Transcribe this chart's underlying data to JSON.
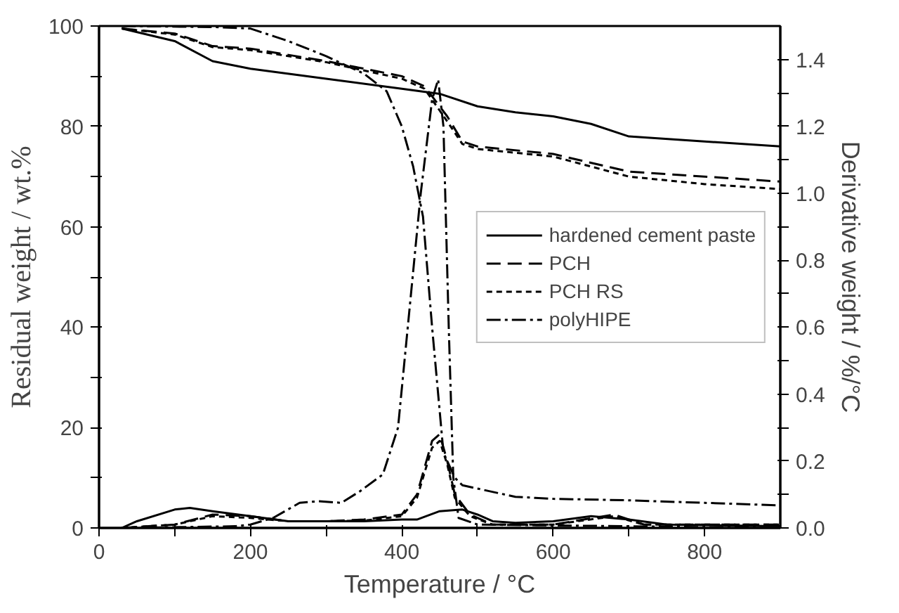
{
  "chart_data": {
    "type": "line",
    "xlabel": "Temperature / °C",
    "ylabel": "Residual weight / wt.%",
    "y2label": "Derivative weight / %/°C",
    "xlim": [
      0,
      900
    ],
    "xticks": [
      0,
      {
        "value": 100,
        "label": null
      },
      200,
      {
        "value": 300,
        "label": null
      },
      400,
      {
        "value": 500,
        "label": null
      },
      600,
      {
        "value": 700,
        "label": null
      },
      800
    ],
    "ylim": [
      0,
      100
    ],
    "yticks": [
      0,
      {
        "value": 10,
        "label": null
      },
      20,
      {
        "value": 30,
        "label": null
      },
      40,
      {
        "value": 50,
        "label": null
      },
      60,
      {
        "value": 70,
        "label": null
      },
      80,
      {
        "value": 90,
        "label": null
      },
      100
    ],
    "y2lim": [
      0,
      1.5
    ],
    "y2ticks": [
      {
        "value": 0,
        "label": "0.0"
      },
      {
        "value": 0.1,
        "label": null
      },
      0.2,
      {
        "value": 0.3,
        "label": null
      },
      0.4,
      {
        "value": 0.5,
        "label": null
      },
      0.6,
      {
        "value": 0.7,
        "label": null
      },
      0.8,
      {
        "value": 0.9,
        "label": null
      },
      {
        "value": 1.0,
        "label": "1.0"
      },
      {
        "value": 1.1,
        "label": null
      },
      1.2,
      {
        "value": 1.3,
        "label": null
      },
      1.4
    ],
    "grid": false,
    "legend": "right",
    "marker": "none",
    "series": [
      {
        "name": "hardened cement paste",
        "color": "#000000",
        "line_style": "solid",
        "x": [
          30,
          100,
          150,
          200,
          300,
          400,
          450,
          500,
          550,
          600,
          650,
          700,
          800,
          900
        ],
        "values": [
          99.5,
          97,
          93,
          91.5,
          89.5,
          87.5,
          86.5,
          84,
          82.8,
          82,
          80.5,
          78,
          77,
          76
        ]
      },
      {
        "name": "PCH",
        "color": "#000000",
        "line_style": "dashed",
        "x": [
          30,
          100,
          150,
          200,
          300,
          400,
          430,
          460,
          480,
          500,
          600,
          700,
          800,
          900
        ],
        "values": [
          99.5,
          98.5,
          96,
          95.5,
          93,
          90,
          88,
          82,
          77,
          76,
          74.5,
          71,
          70,
          69
        ]
      },
      {
        "name": "PCH RS",
        "color": "#000000",
        "line_style": "dotted",
        "x": [
          30,
          100,
          150,
          200,
          300,
          400,
          430,
          460,
          480,
          500,
          600,
          700,
          800,
          900
        ],
        "values": [
          99.5,
          98.3,
          95.8,
          95.2,
          92.8,
          89.5,
          87.5,
          81,
          76.5,
          75.5,
          74,
          70,
          68.5,
          67.5
        ]
      },
      {
        "name": "polyHIPE",
        "color": "#000000",
        "line_style": "dashdot",
        "x": [
          30,
          150,
          200,
          250,
          300,
          350,
          380,
          400,
          415,
          428,
          440,
          455,
          470,
          480,
          550,
          600,
          700,
          800,
          900
        ],
        "values": [
          100,
          99.8,
          99.5,
          97,
          94,
          90.5,
          87,
          80,
          72,
          62,
          40,
          15,
          10,
          8.5,
          6.2,
          5.8,
          5.5,
          5,
          4.5
        ]
      },
      {
        "color": "#000000",
        "line_style": "solid",
        "axis": "y2",
        "x": [
          30,
          50,
          100,
          120,
          150,
          200,
          250,
          300,
          350,
          400,
          420,
          450,
          480,
          500,
          520,
          550,
          600,
          650,
          700,
          750,
          900
        ],
        "values": [
          0,
          0.02,
          0.055,
          0.06,
          0.05,
          0.035,
          0.02,
          0.02,
          0.02,
          0.025,
          0.025,
          0.05,
          0.055,
          0.04,
          0.02,
          0.015,
          0.02,
          0.035,
          0.025,
          0.01,
          0.005
        ]
      },
      {
        "color": "#000000",
        "line_style": "dashed",
        "axis": "y2",
        "x": [
          30,
          100,
          150,
          200,
          250,
          300,
          350,
          400,
          420,
          440,
          450,
          460,
          470,
          490,
          520,
          600,
          680,
          720,
          900
        ],
        "values": [
          0,
          0.01,
          0.04,
          0.035,
          0.02,
          0.02,
          0.025,
          0.04,
          0.1,
          0.26,
          0.28,
          0.2,
          0.1,
          0.04,
          0.01,
          0.01,
          0.04,
          0.01,
          0.01
        ]
      },
      {
        "color": "#000000",
        "line_style": "dotted",
        "axis": "y2",
        "x": [
          30,
          100,
          150,
          200,
          250,
          300,
          350,
          400,
          420,
          440,
          450,
          460,
          470,
          490,
          520,
          600,
          680,
          720,
          900
        ],
        "values": [
          0,
          0.01,
          0.035,
          0.03,
          0.02,
          0.02,
          0.022,
          0.035,
          0.09,
          0.24,
          0.26,
          0.19,
          0.09,
          0.035,
          0.01,
          0.01,
          0.035,
          0.01,
          0.01
        ]
      },
      {
        "color": "#000000",
        "line_style": "dashdot",
        "axis": "y2",
        "x": [
          30,
          180,
          200,
          230,
          265,
          290,
          320,
          345,
          375,
          395,
          410,
          425,
          440,
          448,
          455,
          462,
          468,
          475,
          500,
          900
        ],
        "values": [
          0,
          0.005,
          0.01,
          0.03,
          0.075,
          0.08,
          0.075,
          0.11,
          0.16,
          0.3,
          0.65,
          1.0,
          1.28,
          1.34,
          1.2,
          0.6,
          0.15,
          0.03,
          0.01,
          0.0
        ]
      }
    ]
  }
}
